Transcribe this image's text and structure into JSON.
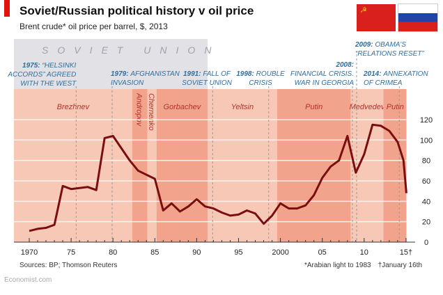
{
  "chart_data": {
    "type": "line",
    "title": "Soviet/Russian political history v oil price",
    "subtitle": "Brent crude* oil price per barrel, $, 2013",
    "xlim": [
      1970,
      2015.1
    ],
    "ylim": [
      0,
      120
    ],
    "grid": true,
    "y_axis_side": "right",
    "x_ticks": [
      {
        "v": 1970,
        "l": "1970"
      },
      {
        "v": 1975,
        "l": "75"
      },
      {
        "v": 1980,
        "l": "80"
      },
      {
        "v": 1985,
        "l": "85"
      },
      {
        "v": 1990,
        "l": "90"
      },
      {
        "v": 1995,
        "l": "95"
      },
      {
        "v": 2000,
        "l": "2000"
      },
      {
        "v": 2005,
        "l": "05"
      },
      {
        "v": 2010,
        "l": "10"
      },
      {
        "v": 2015,
        "l": "15†"
      }
    ],
    "y_ticks": [
      0,
      20,
      40,
      60,
      80,
      100,
      120
    ],
    "series": [
      {
        "color": "#7a0e0e",
        "x": [
          1970,
          1971,
          1972,
          1973,
          1974,
          1975,
          1976,
          1977,
          1978,
          1979,
          1980,
          1981,
          1982,
          1983,
          1984,
          1985,
          1986,
          1987,
          1988,
          1989,
          1990,
          1991,
          1992,
          1993,
          1994,
          1995,
          1996,
          1997,
          1998,
          1999,
          2000,
          2001,
          2002,
          2003,
          2004,
          2005,
          2006,
          2007,
          2008,
          2009,
          2010,
          2011,
          2012,
          2013,
          2014,
          2014.7,
          2015.04
        ],
        "y": [
          11,
          13,
          14,
          17,
          55,
          52,
          53,
          54,
          51,
          102,
          104,
          92,
          80,
          70,
          66,
          62,
          31,
          38,
          30,
          35,
          42,
          35,
          33,
          29,
          26,
          27,
          31,
          28,
          18,
          26,
          38,
          33,
          33,
          36,
          46,
          63,
          74,
          80,
          104,
          68,
          86,
          115,
          114,
          109,
          98,
          80,
          48
        ]
      }
    ],
    "eras": [
      {
        "label": "Brezhnev",
        "from": 1970,
        "to": 1982.3,
        "color": "#f8c8b6"
      },
      {
        "label": "Andropov",
        "from": 1982.3,
        "to": 1984.1,
        "color": "#f2a38c",
        "vertical": true
      },
      {
        "label": "Chernenko",
        "from": 1984.1,
        "to": 1985.2,
        "color": "#f8c8b6",
        "vertical": true
      },
      {
        "label": "Gorbachev",
        "from": 1985.2,
        "to": 1991.3,
        "color": "#f2a38c"
      },
      {
        "label": "Yeltsin",
        "from": 1991.3,
        "to": 1999.6,
        "color": "#f8c8b6"
      },
      {
        "label": "Putin",
        "from": 1999.6,
        "to": 2008.4,
        "color": "#f2a38c"
      },
      {
        "label": "Medvedev",
        "from": 2008.4,
        "to": 2012.3,
        "color": "#f8c8b6"
      },
      {
        "label": "Putin",
        "from": 2012.3,
        "to": 2015.1,
        "color": "#f2a38c"
      }
    ],
    "soviet_band": {
      "label": "SOVIET UNION",
      "to": 1991.3,
      "color": "#e2e2e6"
    },
    "events": [
      {
        "year": 1975.6,
        "bold": "1975:",
        "lines": [
          "“HELSINKI",
          "ACCORDS” AGREED",
          "WITH THE WEST"
        ],
        "align": "end"
      },
      {
        "year": 1979.9,
        "bold": "1979:",
        "lines": [
          "AFGHANISTAN",
          "INVASION"
        ],
        "align": "start"
      },
      {
        "year": 1991.9,
        "bold": "1991:",
        "lines": [
          "FALL OF",
          "SOVIET UNION"
        ],
        "align": "start"
      },
      {
        "year": 1998.6,
        "bold": "1998:",
        "lines": [
          "ROUBLE",
          "CRISIS"
        ],
        "align": "middle"
      },
      {
        "year": 2008.6,
        "bold": "2008:",
        "lines": [
          "FINANCIAL CRISIS.",
          "WAR IN GEORGIA"
        ],
        "align": "end"
      },
      {
        "year": 2009.1,
        "bold": "2009:",
        "lines": [
          "OBAMA’S",
          "“RELATIONS RESET”"
        ],
        "align": "start"
      },
      {
        "year": 2014.2,
        "bold": "2014:",
        "lines": [
          "ANNEXATION",
          "OF CRIMEA"
        ],
        "align": "middle"
      }
    ],
    "colors": {
      "annotation": "#2f6e9e",
      "era_text": "#b5312a",
      "soviet_text": "#a0a0a8"
    }
  },
  "footer": {
    "sources": "Sources: BP; Thomson Reuters",
    "note1": "*Arabian light to 1983",
    "note2": "†January 16th",
    "brand": "Economist.com"
  },
  "flags": {
    "ussr": "Soviet flag",
    "russia": "Russian flag"
  }
}
